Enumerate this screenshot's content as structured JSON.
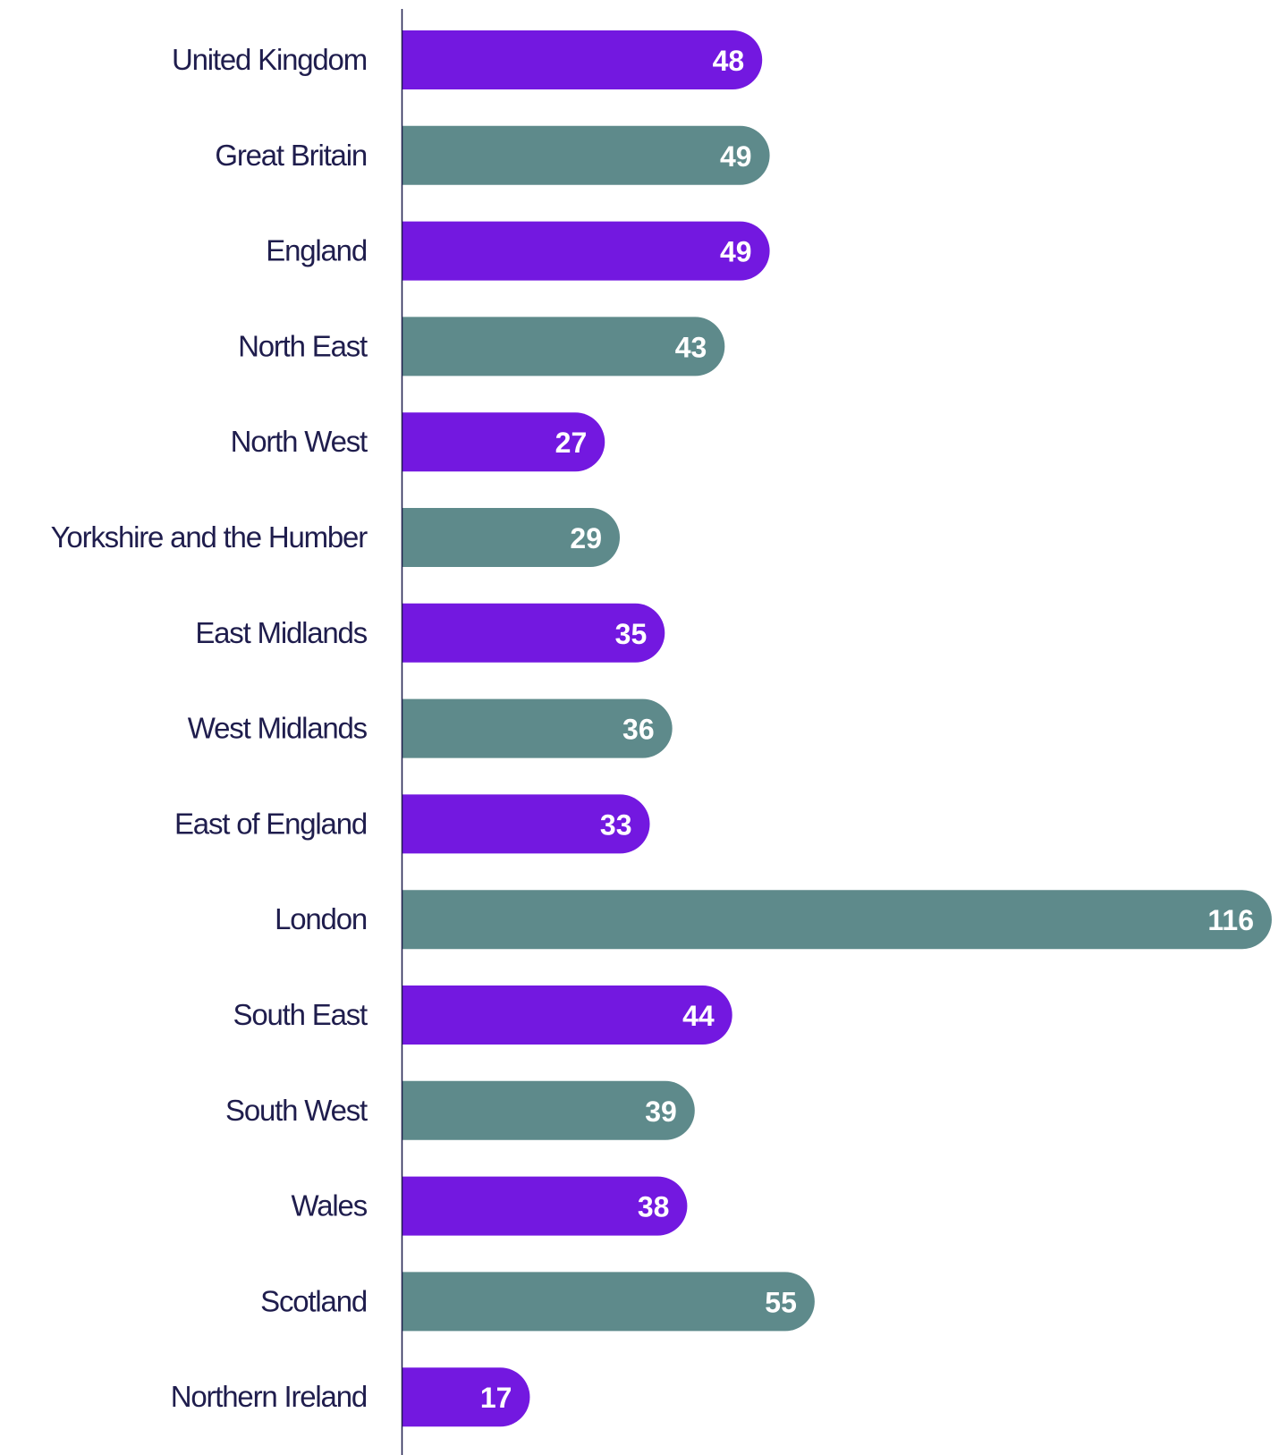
{
  "chart_data": {
    "type": "bar",
    "orientation": "horizontal",
    "categories": [
      "United Kingdom",
      "Great Britain",
      "England",
      "North East",
      "North West",
      "Yorkshire and the Humber",
      "East Midlands",
      "West Midlands",
      "East of England",
      "London",
      "South East",
      "South West",
      "Wales",
      "Scotland",
      "Northern Ireland"
    ],
    "values": [
      48,
      49,
      49,
      43,
      27,
      29,
      35,
      36,
      33,
      116,
      44,
      39,
      38,
      55,
      17
    ],
    "data_labels": [
      "48",
      "49",
      "49",
      "43",
      "27",
      "29",
      "35",
      "36",
      "33",
      "116",
      "44",
      "39",
      "38",
      "55",
      "17"
    ],
    "bar_colors": [
      "#7318e0",
      "#5e8a8b"
    ],
    "text_color": "#1f1d4d",
    "axis_color": "#1f1d4d",
    "xlim": [
      0,
      116
    ],
    "grid": false,
    "legend": "none"
  }
}
